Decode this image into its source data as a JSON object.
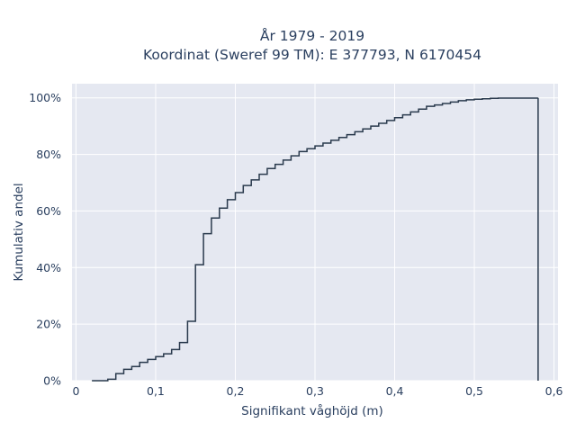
{
  "chart_data": {
    "type": "line",
    "style": "cumulative step (ECDF)",
    "title_line1": "År 1979 - 2019",
    "title_line2": "Koordinat (Sweref 99 TM): E 377793, N 6170454",
    "xlabel": "Signifikant våghöjd (m)",
    "ylabel": "Kumulativ andel",
    "xlim": [
      -0.005,
      0.605
    ],
    "ylim": [
      0,
      1.05
    ],
    "x_ticks": [
      {
        "value": 0,
        "label": "0"
      },
      {
        "value": 0.1,
        "label": "0,1"
      },
      {
        "value": 0.2,
        "label": "0,2"
      },
      {
        "value": 0.3,
        "label": "0,3"
      },
      {
        "value": 0.4,
        "label": "0,4"
      },
      {
        "value": 0.5,
        "label": "0,5"
      },
      {
        "value": 0.6,
        "label": "0,6"
      }
    ],
    "y_ticks": [
      {
        "value": 0,
        "label": "0%"
      },
      {
        "value": 0.2,
        "label": "20%"
      },
      {
        "value": 0.4,
        "label": "40%"
      },
      {
        "value": 0.6,
        "label": "60%"
      },
      {
        "value": 0.8,
        "label": "80%"
      },
      {
        "value": 1.0,
        "label": "100%"
      }
    ],
    "grid": true,
    "line_color": "#2a3a4d",
    "plot_background": "#e5e8f1",
    "x": [
      0.02,
      0.04,
      0.05,
      0.06,
      0.07,
      0.08,
      0.09,
      0.1,
      0.11,
      0.12,
      0.13,
      0.14,
      0.15,
      0.16,
      0.17,
      0.18,
      0.19,
      0.2,
      0.21,
      0.22,
      0.23,
      0.24,
      0.25,
      0.26,
      0.27,
      0.28,
      0.29,
      0.3,
      0.31,
      0.32,
      0.33,
      0.34,
      0.35,
      0.36,
      0.37,
      0.38,
      0.39,
      0.4,
      0.41,
      0.42,
      0.43,
      0.44,
      0.45,
      0.46,
      0.47,
      0.48,
      0.49,
      0.5,
      0.51,
      0.52,
      0.53,
      0.58
    ],
    "y": [
      0.0,
      0.005,
      0.025,
      0.04,
      0.05,
      0.065,
      0.075,
      0.085,
      0.095,
      0.11,
      0.135,
      0.21,
      0.41,
      0.52,
      0.575,
      0.61,
      0.64,
      0.665,
      0.69,
      0.71,
      0.73,
      0.75,
      0.765,
      0.78,
      0.795,
      0.81,
      0.82,
      0.83,
      0.84,
      0.85,
      0.86,
      0.87,
      0.88,
      0.89,
      0.9,
      0.91,
      0.92,
      0.93,
      0.94,
      0.95,
      0.96,
      0.97,
      0.975,
      0.98,
      0.985,
      0.99,
      0.993,
      0.995,
      0.997,
      0.998,
      0.999,
      1.0
    ]
  }
}
